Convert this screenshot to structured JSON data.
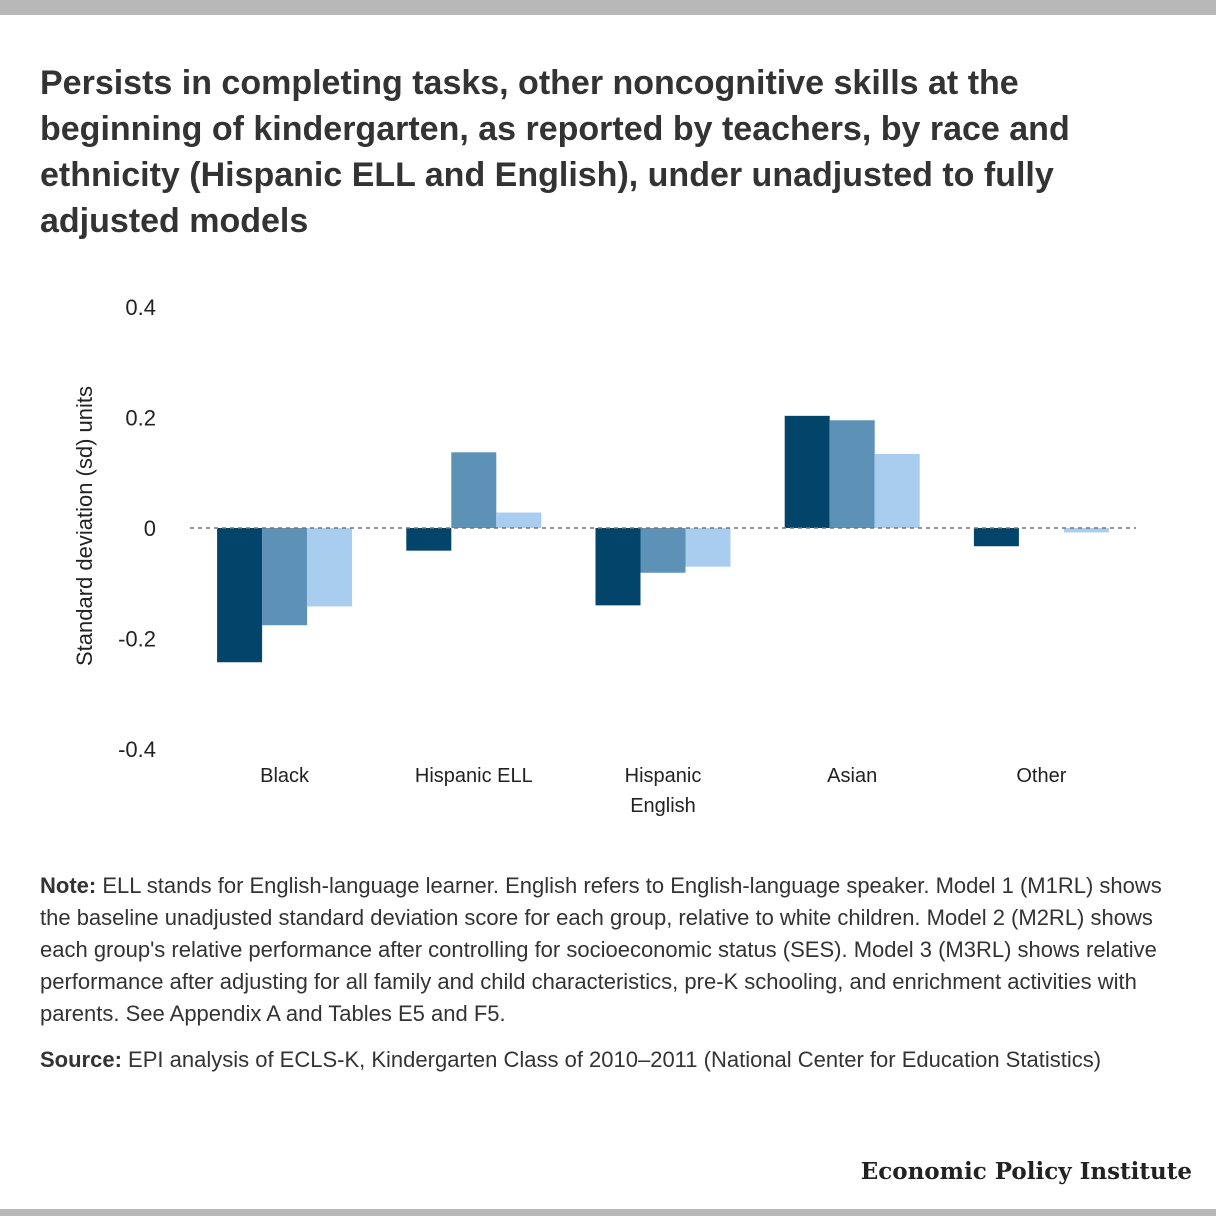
{
  "title": "Persists in completing tasks, other noncognitive skills at the beginning of kindergarten, as reported by teachers, by race and ethnicity (Hispanic ELL and English), under unadjusted to fully adjusted models",
  "note": {
    "label": "Note:",
    "text": "ELL stands for English-language learner. English refers to English-language speaker. Model 1 (M1RL) shows the baseline unadjusted standard deviation score for each group, relative to white children. Model 2 (M2RL) shows each group's relative performance after controlling for socioeconomic status (SES). Model 3 (M3RL) shows relative performance after adjusting for all family and child characteristics, pre-K schooling, and enrichment activities with parents. See Appendix A and Tables E5 and F5."
  },
  "source": {
    "label": "Source:",
    "text": "EPI analysis of ECLS-K, Kindergarten Class of 2010–2011 (National Center for Education Statistics)"
  },
  "brand": "Economic Policy Institute",
  "chart_data": {
    "type": "bar",
    "title": "",
    "xlabel": "",
    "ylabel": "Standard deviation (sd) units",
    "ylim": [
      -0.4,
      0.4
    ],
    "yticks": [
      0.4,
      0.2,
      0,
      -0.2,
      -0.4
    ],
    "ytick_labels": [
      "0.4",
      "0.2",
      "0",
      "-0.2",
      "-0.4"
    ],
    "categories": [
      [
        "Black"
      ],
      [
        "Hispanic ELL"
      ],
      [
        "Hispanic",
        "English"
      ],
      [
        "Asian"
      ],
      [
        "Other"
      ]
    ],
    "series": [
      {
        "values": [
          -0.243,
          -0.041,
          -0.14,
          0.203,
          -0.033
        ],
        "color": "#02446a"
      },
      {
        "values": [
          -0.176,
          0.137,
          -0.081,
          0.195,
          0.0
        ],
        "color": "#5d91b6"
      },
      {
        "values": [
          -0.142,
          0.028,
          -0.07,
          0.134,
          -0.008
        ],
        "color": "#a8cdef"
      }
    ],
    "zero_line": "dashed",
    "grid": false,
    "legend": false
  }
}
